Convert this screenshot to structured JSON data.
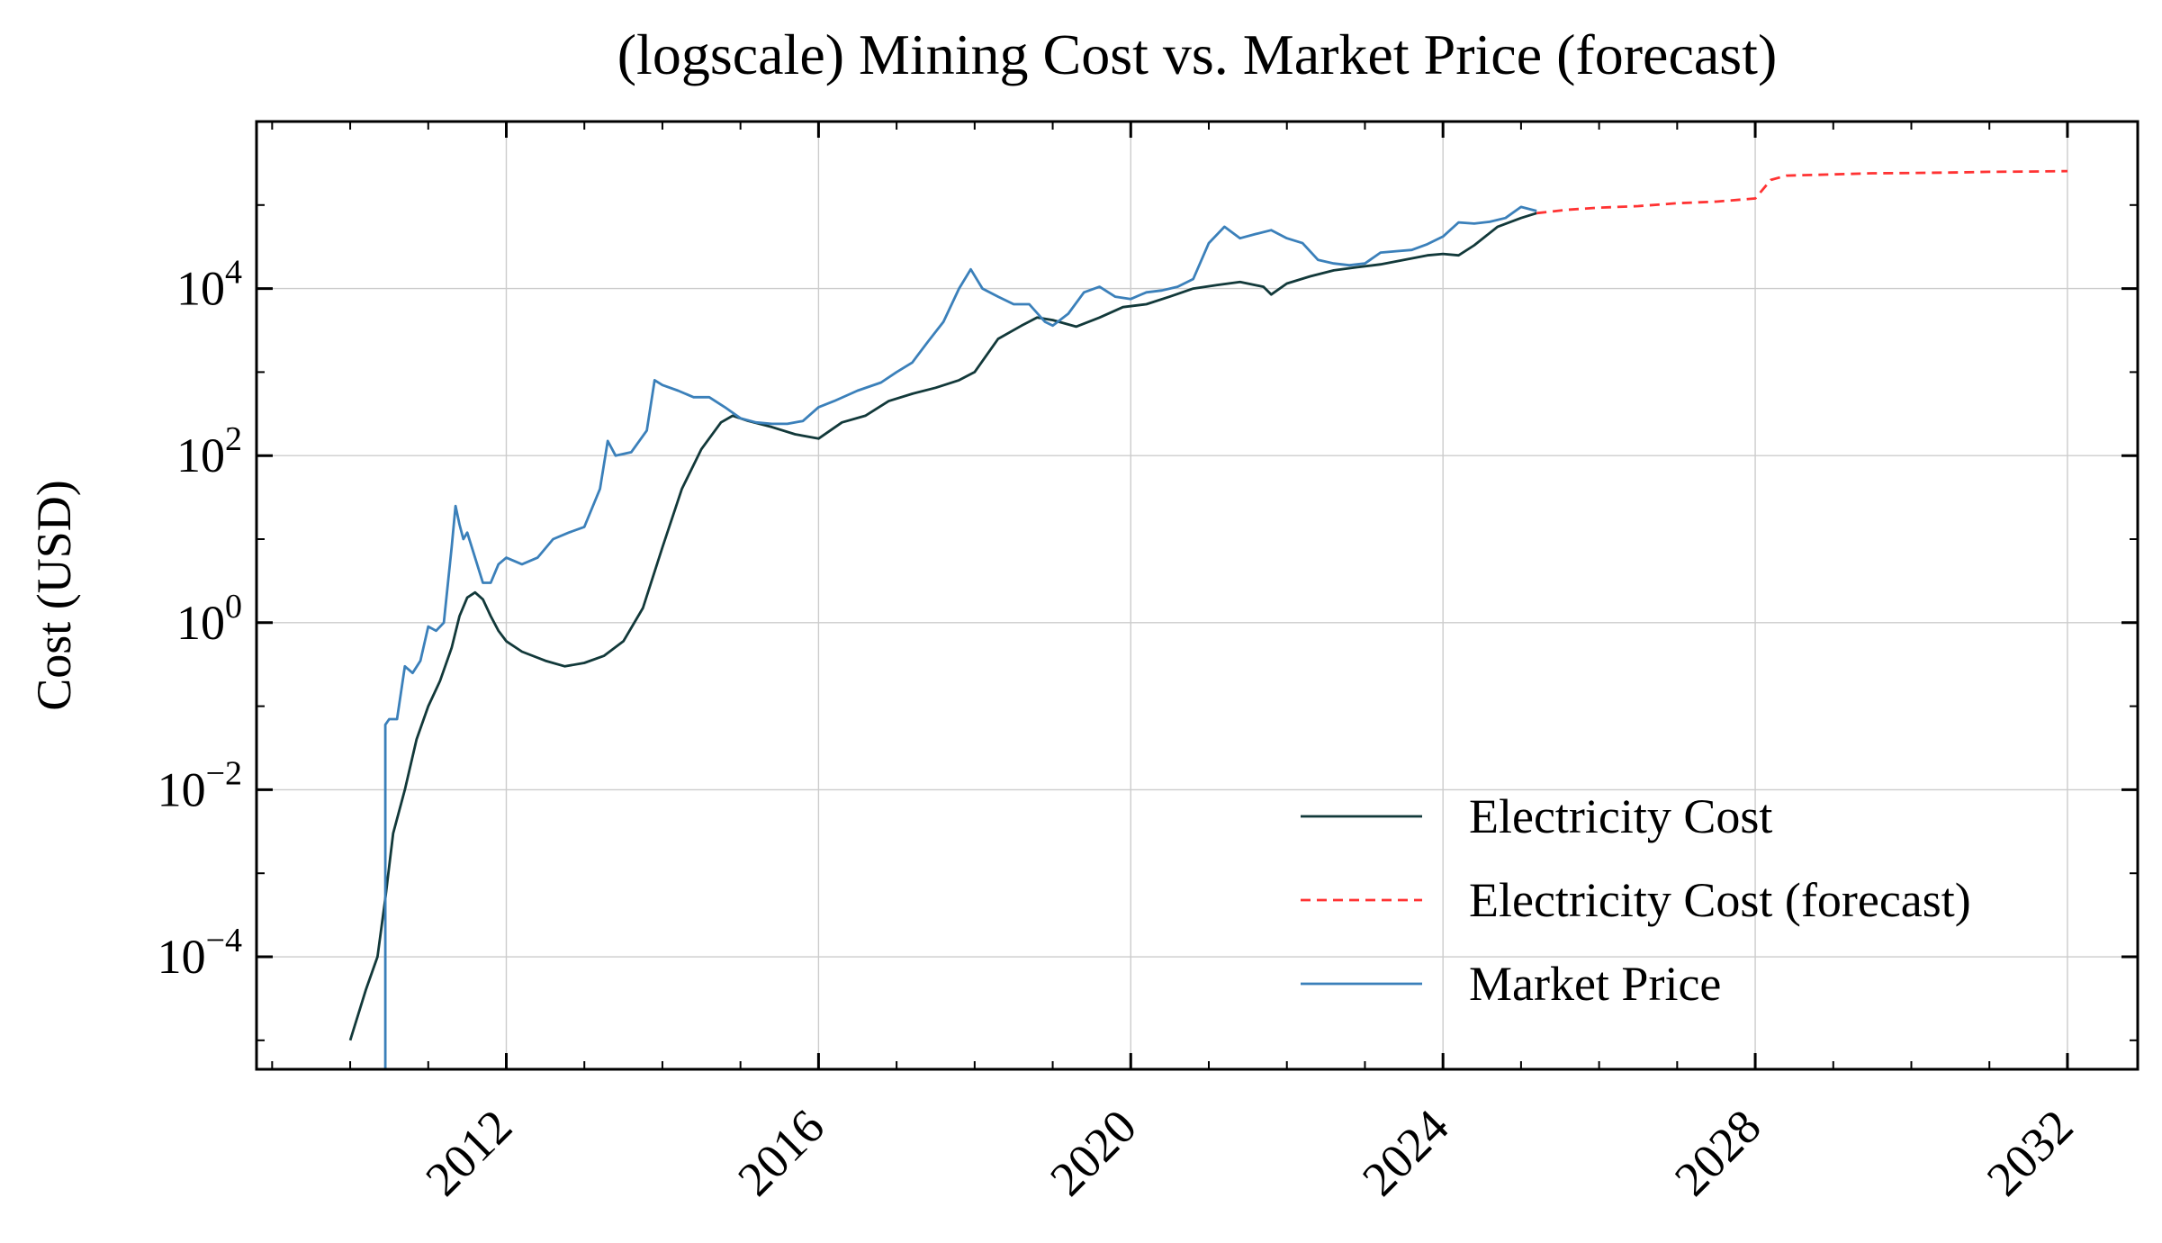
{
  "chart_data": {
    "type": "line",
    "title": "(logscale) Mining Cost vs. Market Price (forecast)",
    "xlabel": "",
    "ylabel": "Cost (USD)",
    "yscale": "log",
    "xlim": [
      2008.8,
      2032.9
    ],
    "ylim": [
      4.5e-06,
      1000000
    ],
    "x_ticks": [
      2012,
      2016,
      2020,
      2024,
      2028,
      2032
    ],
    "x_tick_labels": [
      "2012",
      "2016",
      "2020",
      "2024",
      "2028",
      "2032"
    ],
    "y_tick_values": [
      0.0001,
      0.01,
      1,
      100,
      10000
    ],
    "y_tick_labels": [
      {
        "base": "10",
        "exp": "−4"
      },
      {
        "base": "10",
        "exp": "−2"
      },
      {
        "base": "10",
        "exp": "0"
      },
      {
        "base": "10",
        "exp": "2"
      },
      {
        "base": "10",
        "exp": "4"
      }
    ],
    "grid": true,
    "legend_position": "lower-right",
    "series": [
      {
        "name": "Electricity Cost",
        "color": "#12393a",
        "style": "solid",
        "x": [
          2010.0,
          2010.2,
          2010.35,
          2010.45,
          2010.55,
          2010.7,
          2010.85,
          2011.0,
          2011.15,
          2011.3,
          2011.4,
          2011.5,
          2011.6,
          2011.7,
          2011.8,
          2011.9,
          2012.0,
          2012.2,
          2012.5,
          2012.75,
          2013.0,
          2013.25,
          2013.5,
          2013.75,
          2014.0,
          2014.25,
          2014.5,
          2014.75,
          2014.9,
          2015.1,
          2015.4,
          2015.7,
          2016.0,
          2016.3,
          2016.6,
          2016.9,
          2017.2,
          2017.5,
          2017.8,
          2018.0,
          2018.3,
          2018.6,
          2018.8,
          2019.0,
          2019.3,
          2019.6,
          2019.9,
          2020.2,
          2020.5,
          2020.8,
          2021.1,
          2021.4,
          2021.7,
          2021.8,
          2022.0,
          2022.3,
          2022.6,
          2022.9,
          2023.2,
          2023.5,
          2023.8,
          2024.0,
          2024.2,
          2024.4,
          2024.7,
          2025.0,
          2025.2
        ],
        "y": [
          1e-05,
          4e-05,
          0.0001,
          0.0005,
          0.003,
          0.01,
          0.04,
          0.1,
          0.2,
          0.5,
          1.2,
          2.0,
          2.3,
          1.9,
          1.2,
          0.8,
          0.6,
          0.45,
          0.35,
          0.3,
          0.33,
          0.4,
          0.6,
          1.5,
          8,
          40,
          120,
          250,
          300,
          260,
          220,
          180,
          160,
          250,
          300,
          450,
          550,
          650,
          800,
          1000,
          2500,
          3600,
          4500,
          4200,
          3500,
          4500,
          6000,
          6500,
          8000,
          10000,
          11000,
          12000,
          10500,
          8500,
          11500,
          14000,
          16500,
          18000,
          19500,
          22000,
          25000,
          26000,
          25000,
          33000,
          55000,
          70000,
          80000
        ]
      },
      {
        "name": "Electricity Cost (forecast)",
        "color": "#ff3333",
        "style": "dashed",
        "x": [
          2025.2,
          2025.6,
          2026.0,
          2026.5,
          2027.0,
          2027.5,
          2028.0,
          2028.2,
          2028.4,
          2028.8,
          2029.5,
          2030.0,
          2030.5,
          2031.0,
          2031.5,
          2032.0
        ],
        "y": [
          80000,
          88000,
          93000,
          97000,
          105000,
          110000,
          120000,
          200000,
          225000,
          230000,
          240000,
          242000,
          245000,
          250000,
          252000,
          255000
        ]
      },
      {
        "name": "Market Price",
        "color": "#3b80ba",
        "style": "solid",
        "x": [
          2010.45,
          2010.45,
          2010.5,
          2010.6,
          2010.7,
          2010.8,
          2010.9,
          2011.0,
          2011.1,
          2011.2,
          2011.3,
          2011.35,
          2011.4,
          2011.45,
          2011.5,
          2011.6,
          2011.7,
          2011.8,
          2011.9,
          2012.0,
          2012.2,
          2012.4,
          2012.6,
          2012.8,
          2013.0,
          2013.2,
          2013.3,
          2013.4,
          2013.6,
          2013.8,
          2013.9,
          2014.0,
          2014.2,
          2014.4,
          2014.6,
          2014.8,
          2015.0,
          2015.2,
          2015.4,
          2015.6,
          2015.8,
          2016.0,
          2016.2,
          2016.5,
          2016.8,
          2017.0,
          2017.2,
          2017.4,
          2017.6,
          2017.8,
          2017.95,
          2018.1,
          2018.3,
          2018.5,
          2018.7,
          2018.9,
          2019.0,
          2019.2,
          2019.4,
          2019.6,
          2019.8,
          2020.0,
          2020.2,
          2020.4,
          2020.6,
          2020.8,
          2021.0,
          2021.2,
          2021.4,
          2021.6,
          2021.8,
          2022.0,
          2022.2,
          2022.4,
          2022.6,
          2022.8,
          2023.0,
          2023.2,
          2023.4,
          2023.6,
          2023.8,
          2024.0,
          2024.2,
          2024.4,
          2024.6,
          2024.8,
          2025.0,
          2025.2
        ],
        "y": [
          4.5e-06,
          0.06,
          0.07,
          0.07,
          0.3,
          0.25,
          0.35,
          0.9,
          0.8,
          1.0,
          8,
          25,
          15,
          10,
          12,
          6,
          3,
          3,
          5,
          6,
          5,
          6,
          10,
          12,
          14,
          40,
          150,
          100,
          110,
          200,
          800,
          700,
          600,
          500,
          500,
          380,
          280,
          250,
          240,
          240,
          260,
          380,
          450,
          600,
          750,
          1000,
          1300,
          2300,
          4000,
          10000,
          17000,
          10000,
          8000,
          6500,
          6500,
          4000,
          3600,
          5000,
          9000,
          10500,
          8000,
          7500,
          9000,
          9500,
          10500,
          13000,
          35000,
          55000,
          40000,
          45000,
          50000,
          40000,
          35000,
          22000,
          20000,
          19000,
          20000,
          27000,
          28000,
          29000,
          34000,
          42000,
          62000,
          60000,
          63000,
          70000,
          95000,
          85000
        ]
      }
    ]
  }
}
